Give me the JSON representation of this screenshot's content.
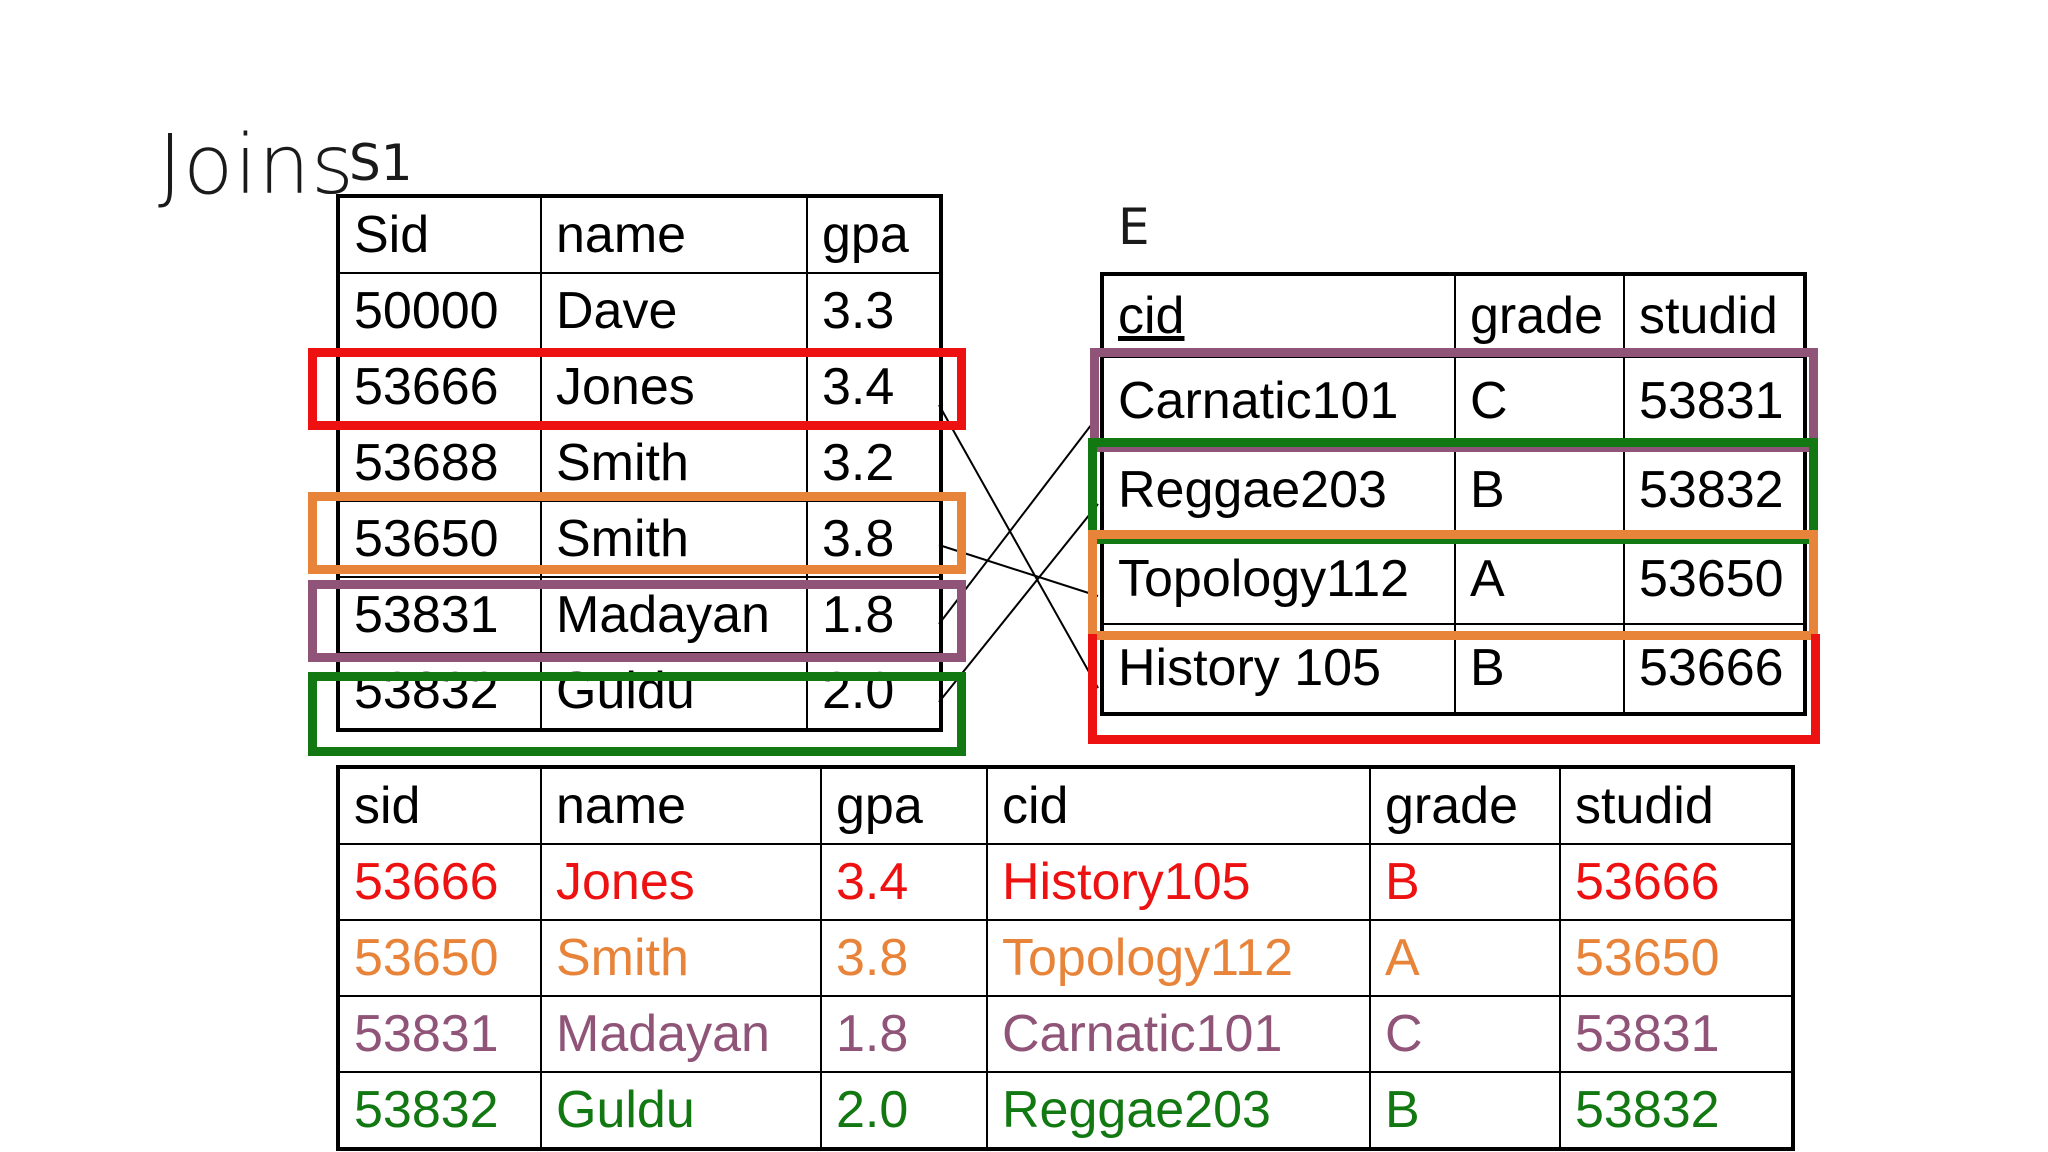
{
  "title": "Joins",
  "s1": {
    "label": "S1",
    "headers": [
      "Sid",
      "name",
      "gpa"
    ],
    "rows": [
      [
        "50000",
        "Dave",
        "3.3"
      ],
      [
        "53666",
        "Jones",
        "3.4"
      ],
      [
        "53688",
        "Smith",
        "3.2"
      ],
      [
        "53650",
        "Smith",
        "3.8"
      ],
      [
        "53831",
        "Madayan",
        "1.8"
      ],
      [
        "53832",
        "Guldu",
        "2.0"
      ]
    ]
  },
  "e": {
    "label": "E",
    "headers": [
      "cid",
      "grade",
      "studid"
    ],
    "rows": [
      [
        "Carnatic101",
        "C",
        "53831"
      ],
      [
        "Reggae203",
        "B",
        "53832"
      ],
      [
        "Topology112",
        "A",
        "53650"
      ],
      [
        "History 105",
        "B",
        "53666"
      ]
    ]
  },
  "result": {
    "headers": [
      "sid",
      "name",
      "gpa",
      "cid",
      "grade",
      "studid"
    ],
    "rows": [
      [
        "53666",
        "Jones",
        "3.4",
        "History105",
        "B",
        "53666"
      ],
      [
        "53650",
        "Smith",
        "3.8",
        "Topology112",
        "A",
        "53650"
      ],
      [
        "53831",
        "Madayan",
        "1.8",
        "Carnatic101",
        "C",
        "53831"
      ],
      [
        "53832",
        "Guldu",
        "2.0",
        "Reggae203",
        "B",
        "53832"
      ]
    ]
  },
  "colors": {
    "red": "#ee1111",
    "orange": "#e8833a",
    "purple": "#8f5478",
    "green": "#127812"
  }
}
